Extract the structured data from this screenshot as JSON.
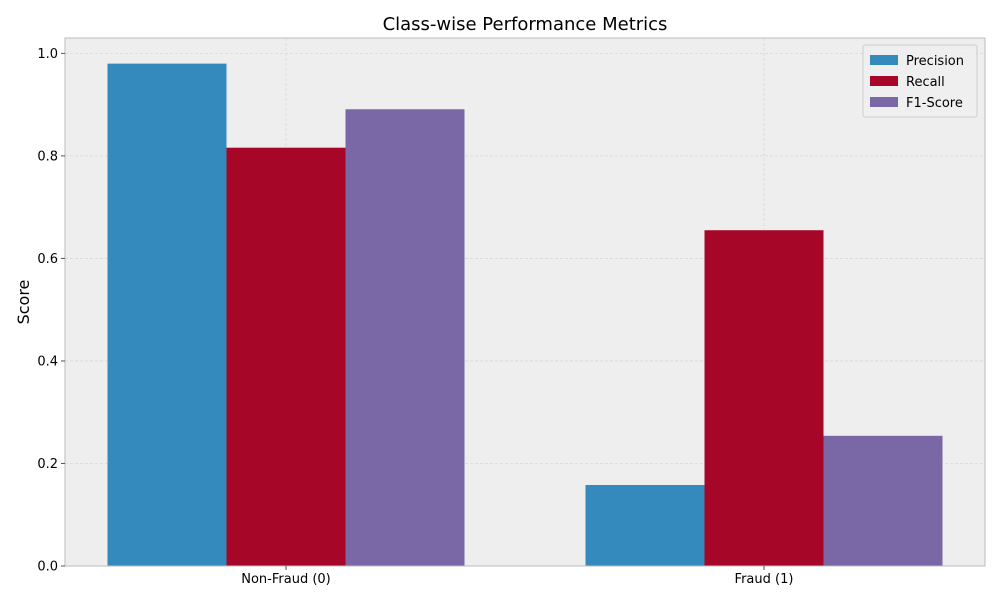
{
  "chart_data": {
    "type": "bar",
    "title": "Class-wise Performance Metrics",
    "xlabel": "",
    "ylabel": "Score",
    "categories": [
      "Non-Fraud (0)",
      "Fraud (1)"
    ],
    "series": [
      {
        "name": "Precision",
        "values": [
          0.98,
          0.158
        ],
        "color": "#348ABD"
      },
      {
        "name": "Recall",
        "values": [
          0.816,
          0.655
        ],
        "color": "#A60628"
      },
      {
        "name": "F1-Score",
        "values": [
          0.891,
          0.254
        ],
        "color": "#7A68A6"
      }
    ],
    "ylim": [
      0,
      1.03
    ],
    "yticks": [
      0.0,
      0.2,
      0.4,
      0.6,
      0.8,
      1.0
    ],
    "ytick_labels": [
      "0.0",
      "0.2",
      "0.4",
      "0.6",
      "0.8",
      "1.0"
    ],
    "grid": true,
    "legend_position": "top-right",
    "background_color": "#EEEEEE"
  }
}
